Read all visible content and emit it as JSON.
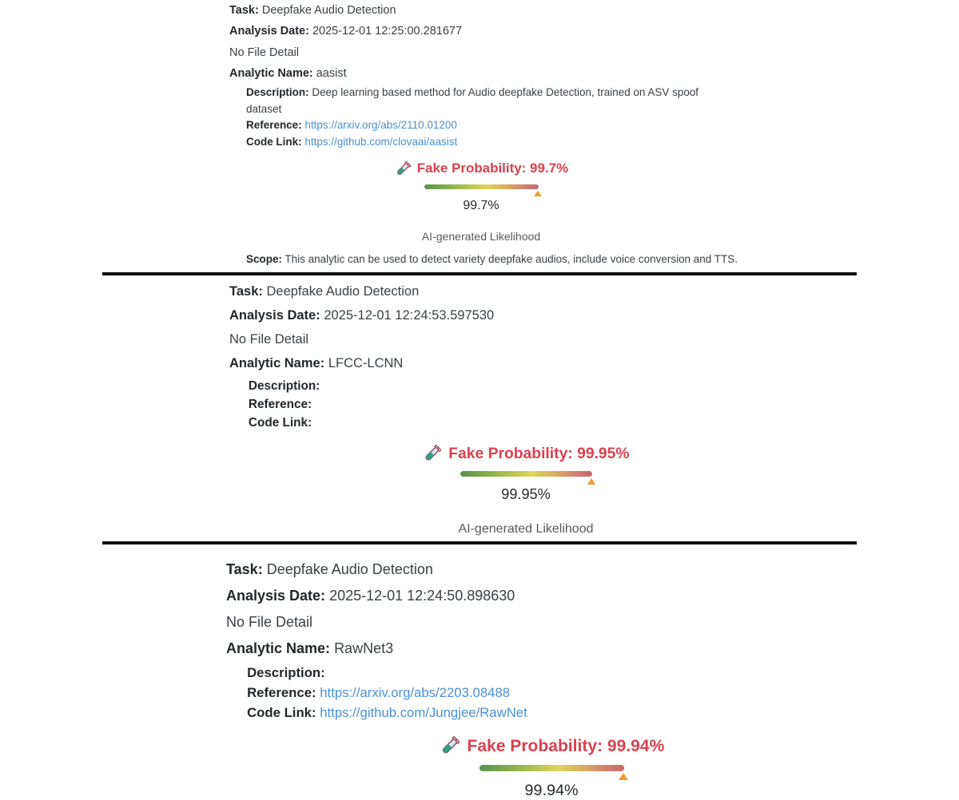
{
  "colors": {
    "accent_red": "#d9414e",
    "link_blue": "#4a90d2",
    "marker_orange": "#f79a28",
    "bar_gradient_start": "#55924d",
    "bar_gradient_mid": "#dcd65b",
    "bar_gradient_end": "#c9666b",
    "divider_black": "#0f0f0f",
    "likelihood_gray": "#595959"
  },
  "icons": {
    "test_tube": "test-tube-icon"
  },
  "sections": [
    {
      "task_label": "Task:",
      "task_value": "Deepfake Audio Detection",
      "date_label": "Analysis Date:",
      "date_value": "2025-12-01 12:25:00.281677",
      "file_detail": "No File Detail",
      "analytic_label": "Analytic Name:",
      "analytic_value": "aasist",
      "description_label": "Description:",
      "description_value": "Deep learning based method for Audio deepfake Detection, trained on ASV spoof dataset",
      "reference_label": "Reference:",
      "reference_value": "https://arxiv.org/abs/2110.01200",
      "code_label": "Code Link:",
      "code_value": "https://github.com/clovaai/aasist",
      "probability_label": "Fake Probability: 99.7%",
      "probability_value": "99.7%",
      "probability_percent": 99.7,
      "likelihood_label": "AI-generated Likelihood",
      "scope_label": "Scope:",
      "scope_value": "This analytic can be used to detect variety deepfake audios, include voice conversion and TTS."
    },
    {
      "task_label": "Task:",
      "task_value": "Deepfake Audio Detection",
      "date_label": "Analysis Date:",
      "date_value": "2025-12-01 12:24:53.597530",
      "file_detail": "No File Detail",
      "analytic_label": "Analytic Name:",
      "analytic_value": "LFCC-LCNN",
      "description_label": "Description:",
      "description_value": "",
      "reference_label": "Reference:",
      "reference_value": "",
      "code_label": "Code Link:",
      "code_value": "",
      "probability_label": "Fake Probability: 99.95%",
      "probability_value": "99.95%",
      "probability_percent": 99.95,
      "likelihood_label": "AI-generated Likelihood"
    },
    {
      "task_label": "Task:",
      "task_value": "Deepfake Audio Detection",
      "date_label": "Analysis Date:",
      "date_value": "2025-12-01 12:24:50.898630",
      "file_detail": "No File Detail",
      "analytic_label": "Analytic Name:",
      "analytic_value": "RawNet3",
      "description_label": "Description:",
      "description_value": "",
      "reference_label": "Reference:",
      "reference_value": "https://arxiv.org/abs/2203.08488",
      "code_label": "Code Link:",
      "code_value": "https://github.com/Jungjee/RawNet",
      "probability_label": "Fake Probability: 99.94%",
      "probability_value": "99.94%",
      "probability_percent": 99.94,
      "likelihood_label": ""
    }
  ]
}
